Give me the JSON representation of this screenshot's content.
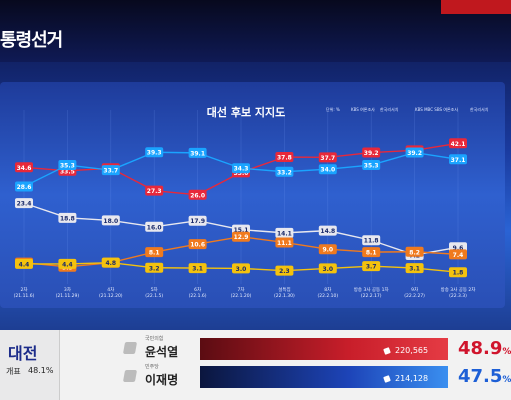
{
  "header": {
    "brand": "통령선거"
  },
  "chart": {
    "title": "대선 후보 지지도",
    "unit": "단위: %",
    "source_1": "KBS 여론조사",
    "source_1b": "한국리서치",
    "source_2": "KBS MBC SBS 여론조사",
    "source_2b": "한국리서치"
  },
  "chart_data": {
    "type": "line",
    "x": [
      "2차\n(21.11.6)",
      "3차\n(21.11.29)",
      "4차\n(21.12.20)",
      "5차\n(22.1.5)",
      "6차\n(22.1.6)",
      "7차\n(22.1.20)",
      "설특집\n(22.1.30)",
      "8차\n(22.2.10)",
      "방송 3사 공동 1차\n(22.2.17)",
      "9차\n(22.2.27)",
      "방송 3사 공동 2차\n(22.3.3)"
    ],
    "series": [
      {
        "color": "#e8283a",
        "values": [
          34.6,
          33.5,
          34.3,
          27.3,
          26.0,
          33.0,
          37.8,
          37.7,
          39.2,
          39.9,
          42.1
        ]
      },
      {
        "color": "#1aa4ff",
        "values": [
          28.6,
          35.3,
          33.7,
          39.3,
          39.1,
          34.3,
          33.2,
          34.0,
          35.3,
          39.2,
          37.1
        ]
      },
      {
        "color": "#e8e8ef",
        "values": [
          23.4,
          18.8,
          18.0,
          16.0,
          17.9,
          15.1,
          14.1,
          14.8,
          11.8,
          7.2,
          9.6
        ]
      },
      {
        "color": "#f07a1e",
        "values": [
          4.8,
          3.5,
          4.8,
          8.1,
          10.6,
          12.9,
          11.1,
          9.0,
          8.1,
          8.2,
          7.4
        ]
      },
      {
        "color": "#f4c20d",
        "values": [
          4.4,
          4.4,
          4.8,
          3.2,
          3.1,
          3.0,
          2.3,
          3.0,
          3.7,
          3.1,
          1.8
        ]
      }
    ],
    "ylim": [
      0,
      50
    ]
  },
  "result": {
    "region": "대전",
    "count_label": "개표",
    "count_value": "48.1%",
    "candidates": [
      {
        "party": "국민의힘",
        "name": "윤석열",
        "votes": "220,565",
        "pct_main": "48.9",
        "pct_unit": "%",
        "color": "#d0142c"
      },
      {
        "party": "민주당",
        "name": "이재명",
        "votes": "214,128",
        "pct_main": "47.5",
        "pct_unit": "%",
        "color": "#1d5fd6"
      }
    ]
  }
}
